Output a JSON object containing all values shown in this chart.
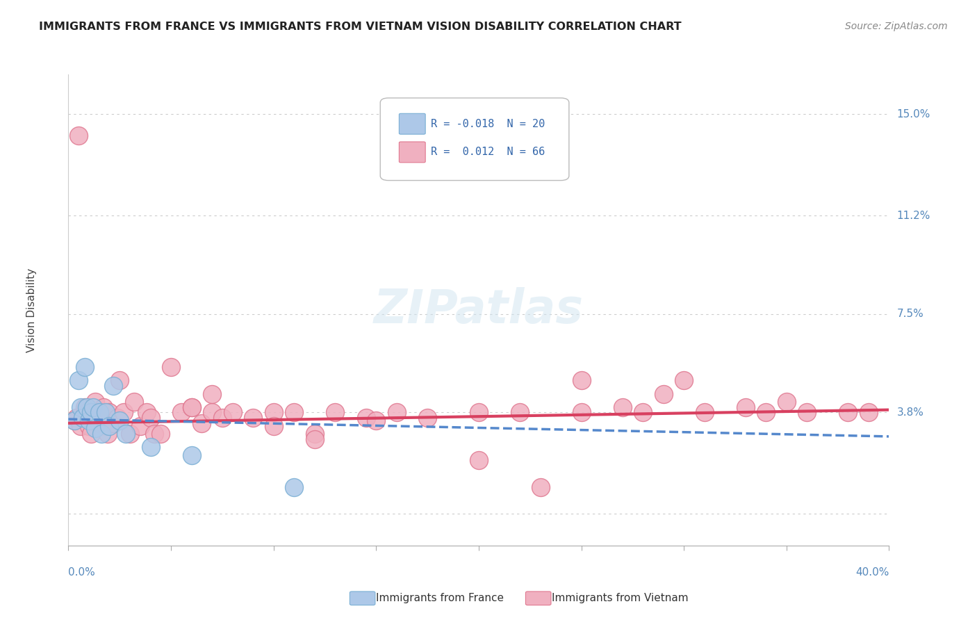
{
  "title": "IMMIGRANTS FROM FRANCE VS IMMIGRANTS FROM VIETNAM VISION DISABILITY CORRELATION CHART",
  "source": "Source: ZipAtlas.com",
  "ylabel": "Vision Disability",
  "xlim": [
    0.0,
    0.4
  ],
  "ylim": [
    -0.012,
    0.165
  ],
  "legend_france": "Immigrants from France",
  "legend_vietnam": "Immigrants from Vietnam",
  "R_france": -0.018,
  "N_france": 20,
  "R_vietnam": 0.012,
  "N_vietnam": 66,
  "france_color": "#adc8e8",
  "france_edge_color": "#7aafd4",
  "vietnam_color": "#f0b0c0",
  "vietnam_edge_color": "#e07890",
  "france_line_color": "#5588cc",
  "vietnam_line_color": "#d84060",
  "grid_color": "#cccccc",
  "background_color": "#ffffff",
  "france_trend_y0": 0.0355,
  "france_trend_y1": 0.029,
  "vietnam_trend_y0": 0.034,
  "vietnam_trend_y1": 0.039,
  "france_x": [
    0.003,
    0.005,
    0.006,
    0.007,
    0.008,
    0.009,
    0.01,
    0.011,
    0.012,
    0.013,
    0.015,
    0.016,
    0.018,
    0.02,
    0.022,
    0.025,
    0.028,
    0.04,
    0.06,
    0.11
  ],
  "france_y": [
    0.035,
    0.05,
    0.04,
    0.036,
    0.055,
    0.04,
    0.035,
    0.038,
    0.04,
    0.032,
    0.038,
    0.03,
    0.038,
    0.033,
    0.048,
    0.035,
    0.03,
    0.025,
    0.022,
    0.01
  ],
  "vietnam_x": [
    0.003,
    0.004,
    0.005,
    0.006,
    0.007,
    0.008,
    0.009,
    0.01,
    0.011,
    0.012,
    0.013,
    0.014,
    0.015,
    0.016,
    0.017,
    0.018,
    0.019,
    0.02,
    0.022,
    0.024,
    0.025,
    0.027,
    0.03,
    0.032,
    0.035,
    0.038,
    0.04,
    0.042,
    0.045,
    0.05,
    0.055,
    0.06,
    0.065,
    0.07,
    0.075,
    0.08,
    0.09,
    0.1,
    0.11,
    0.12,
    0.13,
    0.145,
    0.16,
    0.175,
    0.2,
    0.22,
    0.25,
    0.28,
    0.31,
    0.34,
    0.36,
    0.38,
    0.39,
    0.25,
    0.27,
    0.29,
    0.06,
    0.07,
    0.3,
    0.33,
    0.35,
    0.1,
    0.12,
    0.15,
    0.2,
    0.23
  ],
  "vietnam_y": [
    0.035,
    0.036,
    0.142,
    0.033,
    0.036,
    0.04,
    0.038,
    0.033,
    0.03,
    0.038,
    0.042,
    0.036,
    0.034,
    0.038,
    0.04,
    0.033,
    0.03,
    0.038,
    0.034,
    0.036,
    0.05,
    0.038,
    0.03,
    0.042,
    0.033,
    0.038,
    0.036,
    0.03,
    0.03,
    0.055,
    0.038,
    0.04,
    0.034,
    0.038,
    0.036,
    0.038,
    0.036,
    0.038,
    0.038,
    0.03,
    0.038,
    0.036,
    0.038,
    0.036,
    0.038,
    0.038,
    0.038,
    0.038,
    0.038,
    0.038,
    0.038,
    0.038,
    0.038,
    0.05,
    0.04,
    0.045,
    0.04,
    0.045,
    0.05,
    0.04,
    0.042,
    0.033,
    0.028,
    0.035,
    0.02,
    0.01
  ]
}
